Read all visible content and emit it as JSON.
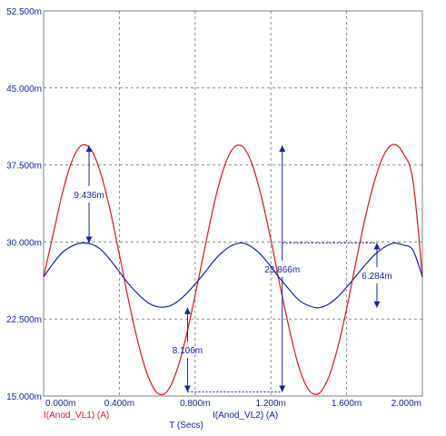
{
  "chart_data": {
    "type": "line",
    "xlabel": "T (Secs)",
    "ylabel": "",
    "xlim": [
      0,
      2.0
    ],
    "ylim": [
      15.0,
      52.5
    ],
    "x_ticks": [
      {
        "value": 0.0,
        "label": "0.000m"
      },
      {
        "value": 0.4,
        "label": "0.400m"
      },
      {
        "value": 0.8,
        "label": "0.800m"
      },
      {
        "value": 1.2,
        "label": "1.200m"
      },
      {
        "value": 1.6,
        "label": "1.600m"
      },
      {
        "value": 2.0,
        "label": "2.000m"
      }
    ],
    "y_ticks": [
      {
        "value": 15.0,
        "label": "15.000m"
      },
      {
        "value": 22.5,
        "label": "22.500m"
      },
      {
        "value": 30.0,
        "label": "30.000m"
      },
      {
        "value": 37.5,
        "label": "37.500m"
      },
      {
        "value": 45.0,
        "label": "45.000m"
      },
      {
        "value": 52.5,
        "label": "52.500m"
      }
    ],
    "grid": true,
    "series": [
      {
        "name": "I(Anod_VL1) (A)",
        "color": "#e0141e",
        "x": [
          0.0,
          0.05,
          0.1,
          0.15,
          0.2,
          0.25,
          0.3,
          0.35,
          0.4,
          0.45,
          0.5,
          0.55,
          0.6,
          0.65,
          0.7,
          0.75,
          0.8,
          0.85,
          0.9,
          0.95,
          1.0,
          1.05,
          1.1,
          1.15,
          1.2,
          1.25,
          1.3,
          1.35,
          1.4,
          1.45,
          1.5,
          1.55,
          1.6,
          1.65,
          1.7,
          1.75,
          1.8,
          1.85,
          1.9,
          1.95,
          2.0
        ],
        "values": [
          26.6,
          30.7,
          34.8,
          37.9,
          39.4,
          39.0,
          36.8,
          33.2,
          28.8,
          24.2,
          20.1,
          17.0,
          15.3,
          15.4,
          17.3,
          20.6,
          24.8,
          29.3,
          33.7,
          37.1,
          39.1,
          39.3,
          37.6,
          34.4,
          30.2,
          25.6,
          21.3,
          17.7,
          15.6,
          15.2,
          16.6,
          19.5,
          23.5,
          28.1,
          32.5,
          36.1,
          38.6,
          39.5,
          38.6,
          36.0,
          26.6
        ]
      },
      {
        "name": "I(Anod_VL2) (A)",
        "color": "#1428a0",
        "x": [
          0.0,
          0.05,
          0.1,
          0.15,
          0.2,
          0.25,
          0.3,
          0.35,
          0.4,
          0.45,
          0.5,
          0.55,
          0.6,
          0.65,
          0.7,
          0.75,
          0.8,
          0.85,
          0.9,
          0.95,
          1.0,
          1.05,
          1.1,
          1.15,
          1.2,
          1.25,
          1.3,
          1.35,
          1.4,
          1.45,
          1.5,
          1.55,
          1.6,
          1.65,
          1.7,
          1.75,
          1.8,
          1.85,
          1.9,
          1.95,
          2.0
        ],
        "values": [
          26.6,
          27.9,
          29.0,
          29.6,
          29.9,
          29.8,
          29.3,
          28.3,
          27.1,
          25.9,
          24.9,
          24.1,
          23.7,
          23.7,
          24.1,
          24.9,
          25.9,
          27.0,
          28.2,
          29.1,
          29.7,
          29.9,
          29.5,
          28.7,
          27.6,
          26.4,
          25.3,
          24.3,
          23.8,
          23.6,
          23.9,
          24.6,
          25.6,
          26.7,
          27.8,
          28.8,
          29.5,
          29.9,
          29.7,
          29.2,
          26.6
        ]
      }
    ],
    "annotations": [
      {
        "label": "9.436m",
        "x": 0.24,
        "y_from": 29.9,
        "y_to": 39.4,
        "color": "#1428a0"
      },
      {
        "label": "8.106m",
        "x": 0.76,
        "y_from": 15.4,
        "y_to": 23.6,
        "color": "#1428a0"
      },
      {
        "label": "23.866m",
        "x": 1.26,
        "y_from": 15.4,
        "y_to": 39.4,
        "color": "#1428a0"
      },
      {
        "label": "6.284m",
        "x": 1.76,
        "y_from": 23.6,
        "y_to": 29.9,
        "color": "#1428a0"
      }
    ],
    "reference_lines": [
      {
        "x1": 0.76,
        "x2": 1.26,
        "y": 15.4
      },
      {
        "x1": 1.26,
        "x2": 1.76,
        "y": 29.9
      }
    ]
  }
}
